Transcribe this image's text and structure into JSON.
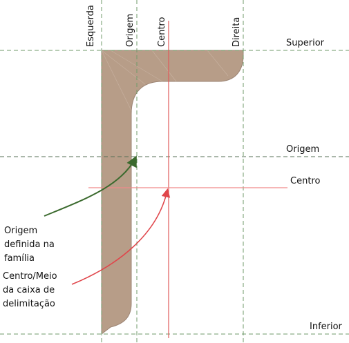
{
  "reference_planes": {
    "vertical": {
      "esquerda": "Esquerda",
      "origem": "Origem",
      "centro": "Centro",
      "direita": "Direita"
    },
    "horizontal": {
      "superior": "Superior",
      "origem": "Origem",
      "centro": "Centro",
      "inferior": "Inferior"
    }
  },
  "annotations": {
    "origin_note": [
      "Origem",
      "definida na",
      "família"
    ],
    "center_note": [
      "Centro/Meio",
      "da caixa de",
      "delimitação"
    ]
  },
  "colors": {
    "shape_fill": "#b79d88",
    "shape_stroke": "#9c8474",
    "dashed_line": "#6f9a6a",
    "center_line": "#e05a5a",
    "origin_arrow": "#3b6a2e",
    "center_arrow": "#e0464b"
  }
}
